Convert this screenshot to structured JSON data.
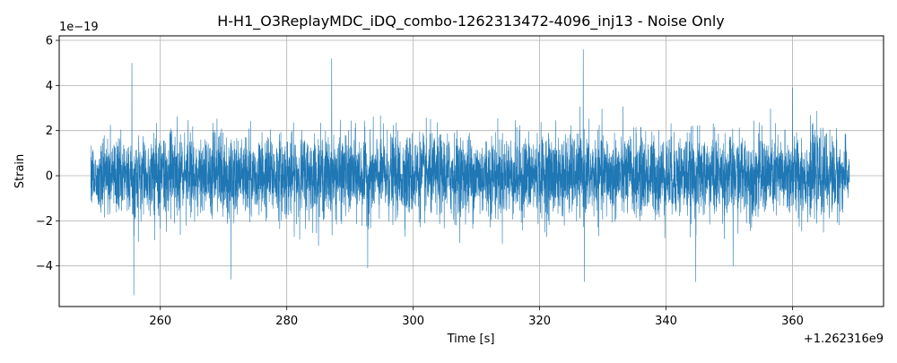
{
  "chart_data": {
    "type": "line",
    "title": "H-H1_O3ReplayMDC_iDQ_combo-1262313472-4096_inj13 - Noise Only",
    "xlabel": "Time [s]",
    "ylabel": "Strain",
    "x_offset_label": "+1.262316e9",
    "y_scale_label": "1e−19",
    "xlim": [
      244.0,
      374.4
    ],
    "ylim": [
      -5.8,
      6.2
    ],
    "xticks": [
      260,
      280,
      300,
      320,
      340,
      360
    ],
    "xtick_labels": [
      "260",
      "280",
      "300",
      "320",
      "340",
      "360"
    ],
    "yticks": [
      -4,
      -2,
      0,
      2,
      4,
      6
    ],
    "ytick_labels": [
      "−4",
      "−2",
      "0",
      "2",
      "4",
      "6"
    ],
    "grid": true,
    "series": [
      {
        "color": "#1f77b4",
        "x_range": [
          249.0,
          369.0
        ],
        "rms": 0.9,
        "peaks": [
          {
            "x": 255.5,
            "y": 5.0
          },
          {
            "x": 255.8,
            "y": -5.3
          },
          {
            "x": 271.2,
            "y": -4.6
          },
          {
            "x": 287.1,
            "y": 5.2
          },
          {
            "x": 292.8,
            "y": -4.1
          },
          {
            "x": 326.9,
            "y": 5.6
          },
          {
            "x": 327.1,
            "y": -4.7
          },
          {
            "x": 344.7,
            "y": -4.7
          },
          {
            "x": 350.6,
            "y": -4.0
          },
          {
            "x": 360.0,
            "y": 3.9
          }
        ]
      }
    ]
  }
}
